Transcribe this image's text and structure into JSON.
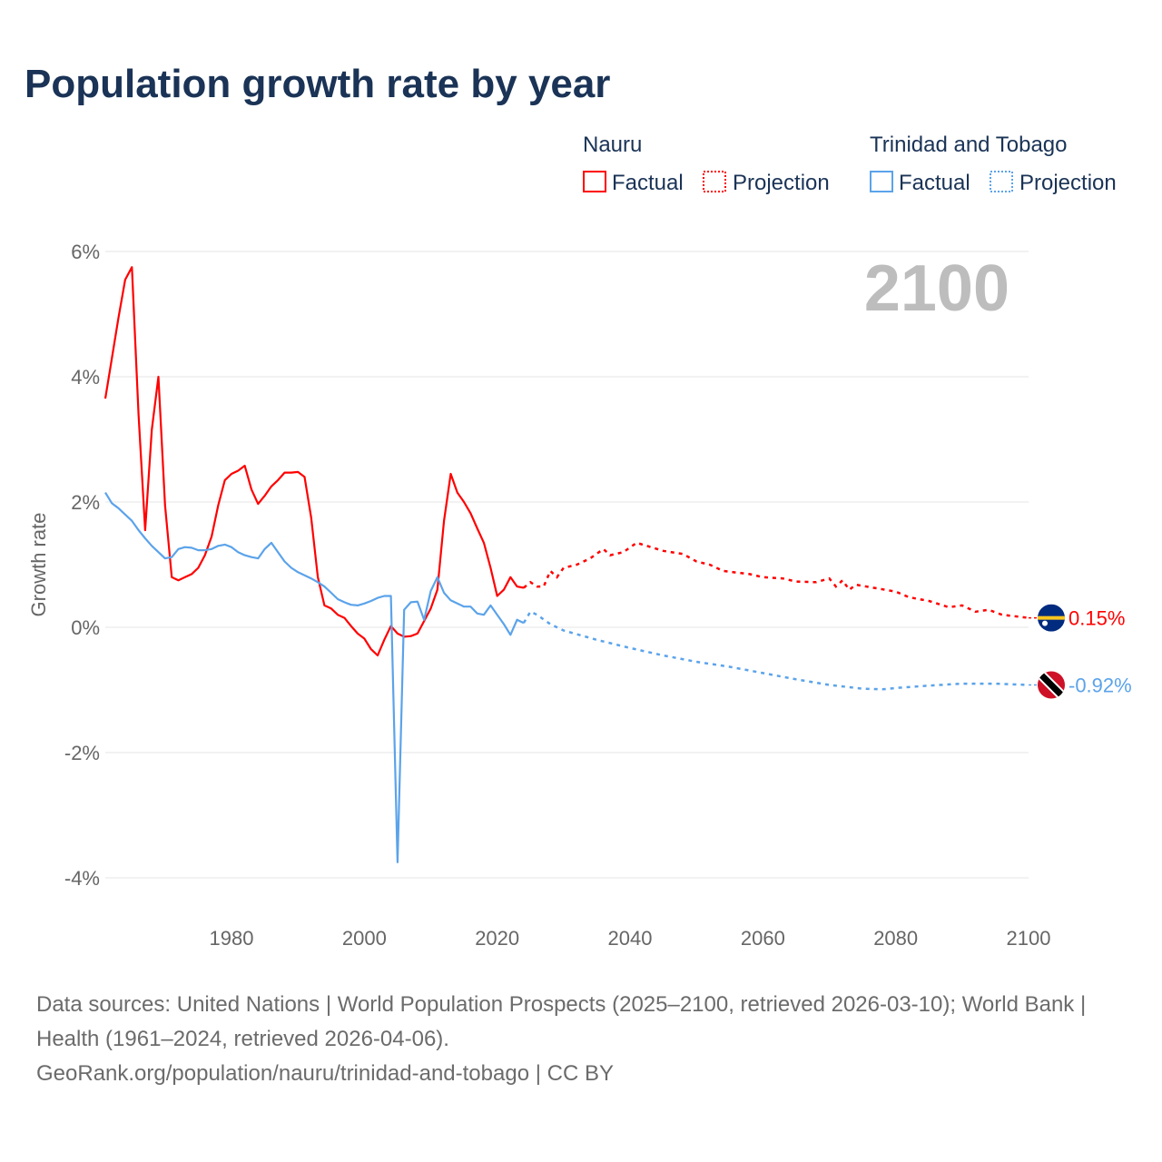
{
  "title": "Population growth rate by year",
  "year_label": "2100",
  "legend": {
    "groups": [
      {
        "name": "Nauru",
        "factual": "Factual",
        "projection": "Projection",
        "color": "#ff0000"
      },
      {
        "name": "Trinidad and Tobago",
        "factual": "Factual",
        "projection": "Projection",
        "color": "#5ba3ea"
      }
    ]
  },
  "sources": {
    "line1": "Data sources: United Nations | World Population Prospects (2025–2100, retrieved 2026-03-10); World Bank | Health (1961–2024, retrieved 2026-04-06).",
    "line2": "GeoRank.org/population/nauru/trinidad-and-tobago | CC BY"
  },
  "chart_data": {
    "type": "line",
    "ylabel": "Growth rate",
    "xlabel": "",
    "xlim": [
      1961,
      2100
    ],
    "ylim": [
      -4.5,
      6
    ],
    "yticks": [
      6,
      4,
      2,
      0,
      -2,
      -4
    ],
    "ytick_labels": [
      "6%",
      "4%",
      "2%",
      "0%",
      "-2%",
      "-4%"
    ],
    "xticks": [
      1980,
      2000,
      2020,
      2040,
      2060,
      2080,
      2100
    ],
    "xtick_labels": [
      "1980",
      "2000",
      "2020",
      "2040",
      "2060",
      "2080",
      "2100"
    ],
    "grid": true,
    "series": [
      {
        "name": "Nauru",
        "end_label": "0.15%",
        "color": "#ff0000",
        "factual": [
          [
            1961,
            3.65
          ],
          [
            1962,
            4.3
          ],
          [
            1963,
            4.95
          ],
          [
            1964,
            5.55
          ],
          [
            1965,
            5.75
          ],
          [
            1966,
            3.4
          ],
          [
            1967,
            1.55
          ],
          [
            1968,
            3.15
          ],
          [
            1969,
            4.0
          ],
          [
            1970,
            1.95
          ],
          [
            1971,
            0.8
          ],
          [
            1972,
            0.75
          ],
          [
            1973,
            0.8
          ],
          [
            1974,
            0.85
          ],
          [
            1975,
            0.95
          ],
          [
            1976,
            1.15
          ],
          [
            1977,
            1.45
          ],
          [
            1978,
            1.95
          ],
          [
            1979,
            2.35
          ],
          [
            1980,
            2.45
          ],
          [
            1981,
            2.5
          ],
          [
            1982,
            2.58
          ],
          [
            1983,
            2.2
          ],
          [
            1984,
            1.97
          ],
          [
            1985,
            2.1
          ],
          [
            1986,
            2.25
          ],
          [
            1987,
            2.35
          ],
          [
            1988,
            2.47
          ],
          [
            1989,
            2.47
          ],
          [
            1990,
            2.48
          ],
          [
            1991,
            2.4
          ],
          [
            1992,
            1.75
          ],
          [
            1993,
            0.8
          ],
          [
            1994,
            0.35
          ],
          [
            1995,
            0.3
          ],
          [
            1996,
            0.2
          ],
          [
            1997,
            0.15
          ],
          [
            1998,
            0.02
          ],
          [
            1999,
            -0.1
          ],
          [
            2000,
            -0.18
          ],
          [
            2001,
            -0.35
          ],
          [
            2002,
            -0.45
          ],
          [
            2003,
            -0.2
          ],
          [
            2004,
            0.02
          ],
          [
            2005,
            -0.1
          ],
          [
            2006,
            -0.15
          ],
          [
            2007,
            -0.14
          ],
          [
            2008,
            -0.1
          ],
          [
            2009,
            0.1
          ],
          [
            2010,
            0.3
          ],
          [
            2011,
            0.6
          ],
          [
            2012,
            1.7
          ],
          [
            2013,
            2.45
          ],
          [
            2014,
            2.15
          ],
          [
            2015,
            2.0
          ],
          [
            2016,
            1.82
          ],
          [
            2017,
            1.58
          ],
          [
            2018,
            1.35
          ],
          [
            2019,
            0.95
          ],
          [
            2020,
            0.5
          ],
          [
            2021,
            0.6
          ],
          [
            2022,
            0.8
          ],
          [
            2023,
            0.65
          ],
          [
            2024,
            0.63
          ]
        ],
        "projection": [
          [
            2024,
            0.63
          ],
          [
            2025,
            0.72
          ],
          [
            2026,
            0.65
          ],
          [
            2027,
            0.65
          ],
          [
            2028,
            0.9
          ],
          [
            2029,
            0.8
          ],
          [
            2030,
            0.95
          ],
          [
            2032,
            1.0
          ],
          [
            2034,
            1.1
          ],
          [
            2036,
            1.25
          ],
          [
            2037,
            1.15
          ],
          [
            2039,
            1.2
          ],
          [
            2041,
            1.35
          ],
          [
            2045,
            1.22
          ],
          [
            2048,
            1.17
          ],
          [
            2050,
            1.05
          ],
          [
            2052,
            1.0
          ],
          [
            2054,
            0.9
          ],
          [
            2058,
            0.85
          ],
          [
            2060,
            0.8
          ],
          [
            2063,
            0.78
          ],
          [
            2065,
            0.73
          ],
          [
            2068,
            0.72
          ],
          [
            2070,
            0.78
          ],
          [
            2071,
            0.65
          ],
          [
            2072,
            0.75
          ],
          [
            2073,
            0.6
          ],
          [
            2074,
            0.68
          ],
          [
            2080,
            0.57
          ],
          [
            2082,
            0.48
          ],
          [
            2085,
            0.42
          ],
          [
            2088,
            0.32
          ],
          [
            2090,
            0.35
          ],
          [
            2092,
            0.25
          ],
          [
            2094,
            0.28
          ],
          [
            2096,
            0.2
          ],
          [
            2100,
            0.15
          ]
        ]
      },
      {
        "name": "Trinidad and Tobago",
        "end_label": "-0.92%",
        "color": "#5ba3ea",
        "factual": [
          [
            1961,
            2.15
          ],
          [
            1962,
            1.98
          ],
          [
            1963,
            1.9
          ],
          [
            1964,
            1.8
          ],
          [
            1965,
            1.7
          ],
          [
            1966,
            1.55
          ],
          [
            1967,
            1.42
          ],
          [
            1968,
            1.3
          ],
          [
            1969,
            1.2
          ],
          [
            1970,
            1.1
          ],
          [
            1971,
            1.12
          ],
          [
            1972,
            1.25
          ],
          [
            1973,
            1.28
          ],
          [
            1974,
            1.27
          ],
          [
            1975,
            1.23
          ],
          [
            1976,
            1.23
          ],
          [
            1977,
            1.25
          ],
          [
            1978,
            1.3
          ],
          [
            1979,
            1.32
          ],
          [
            1980,
            1.28
          ],
          [
            1981,
            1.2
          ],
          [
            1982,
            1.15
          ],
          [
            1983,
            1.12
          ],
          [
            1984,
            1.1
          ],
          [
            1985,
            1.25
          ],
          [
            1986,
            1.35
          ],
          [
            1987,
            1.2
          ],
          [
            1988,
            1.05
          ],
          [
            1989,
            0.95
          ],
          [
            1990,
            0.88
          ],
          [
            1991,
            0.83
          ],
          [
            1992,
            0.78
          ],
          [
            1993,
            0.72
          ],
          [
            1994,
            0.65
          ],
          [
            1995,
            0.55
          ],
          [
            1996,
            0.45
          ],
          [
            1997,
            0.4
          ],
          [
            1998,
            0.36
          ],
          [
            1999,
            0.35
          ],
          [
            2000,
            0.38
          ],
          [
            2001,
            0.42
          ],
          [
            2002,
            0.47
          ],
          [
            2003,
            0.5
          ],
          [
            2004,
            0.5
          ],
          [
            2005,
            -3.75
          ],
          [
            2006,
            0.28
          ],
          [
            2007,
            0.4
          ],
          [
            2008,
            0.41
          ],
          [
            2009,
            0.12
          ],
          [
            2010,
            0.58
          ],
          [
            2011,
            0.8
          ],
          [
            2012,
            0.55
          ],
          [
            2013,
            0.43
          ],
          [
            2014,
            0.38
          ],
          [
            2015,
            0.33
          ],
          [
            2016,
            0.33
          ],
          [
            2017,
            0.22
          ],
          [
            2018,
            0.2
          ],
          [
            2019,
            0.35
          ],
          [
            2020,
            0.2
          ],
          [
            2021,
            0.05
          ],
          [
            2022,
            -0.12
          ],
          [
            2023,
            0.12
          ],
          [
            2024,
            0.07
          ]
        ],
        "projection": [
          [
            2024,
            0.07
          ],
          [
            2025,
            0.25
          ],
          [
            2026,
            0.2
          ],
          [
            2028,
            0.05
          ],
          [
            2030,
            -0.05
          ],
          [
            2035,
            -0.2
          ],
          [
            2040,
            -0.33
          ],
          [
            2045,
            -0.45
          ],
          [
            2050,
            -0.55
          ],
          [
            2055,
            -0.63
          ],
          [
            2060,
            -0.73
          ],
          [
            2065,
            -0.83
          ],
          [
            2070,
            -0.92
          ],
          [
            2075,
            -0.98
          ],
          [
            2078,
            -0.99
          ],
          [
            2080,
            -0.97
          ],
          [
            2085,
            -0.93
          ],
          [
            2090,
            -0.9
          ],
          [
            2095,
            -0.9
          ],
          [
            2100,
            -0.92
          ]
        ]
      }
    ]
  }
}
